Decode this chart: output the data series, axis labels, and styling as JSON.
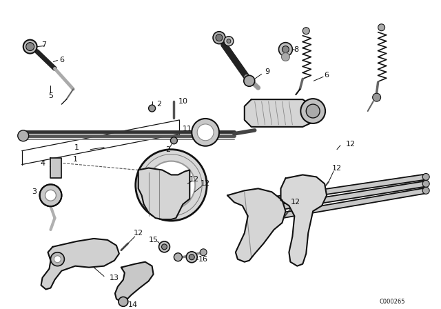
{
  "background_color": "#ffffff",
  "figure_width": 6.4,
  "figure_height": 4.48,
  "dpi": 100,
  "watermark": "C000265",
  "lc": "#111111",
  "lc_dark": "#222222",
  "gray_fill": "#d0d0d0",
  "gray_light": "#e8e8e8"
}
